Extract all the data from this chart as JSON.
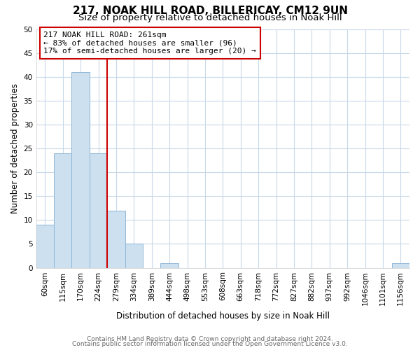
{
  "title": "217, NOAK HILL ROAD, BILLERICAY, CM12 9UN",
  "subtitle": "Size of property relative to detached houses in Noak Hill",
  "xlabel": "Distribution of detached houses by size in Noak Hill",
  "ylabel": "Number of detached properties",
  "bar_labels": [
    "60sqm",
    "115sqm",
    "170sqm",
    "224sqm",
    "279sqm",
    "334sqm",
    "389sqm",
    "444sqm",
    "498sqm",
    "553sqm",
    "608sqm",
    "663sqm",
    "718sqm",
    "772sqm",
    "827sqm",
    "882sqm",
    "937sqm",
    "992sqm",
    "1046sqm",
    "1101sqm",
    "1156sqm"
  ],
  "bar_values": [
    9,
    24,
    41,
    24,
    12,
    5,
    0,
    1,
    0,
    0,
    0,
    0,
    0,
    0,
    0,
    0,
    0,
    0,
    0,
    0,
    1
  ],
  "bar_color": "#cce0f0",
  "bar_edge_color": "#90b8d8",
  "ylim": [
    0,
    50
  ],
  "yticks": [
    0,
    5,
    10,
    15,
    20,
    25,
    30,
    35,
    40,
    45,
    50
  ],
  "vline_x": 3.5,
  "vline_color": "#cc0000",
  "annotation_line1": "217 NOAK HILL ROAD: 261sqm",
  "annotation_line2": "← 83% of detached houses are smaller (96)",
  "annotation_line3": "17% of semi-detached houses are larger (20) →",
  "footer_line1": "Contains HM Land Registry data © Crown copyright and database right 2024.",
  "footer_line2": "Contains public sector information licensed under the Open Government Licence v3.0.",
  "background_color": "#ffffff",
  "grid_color": "#c8d8e8",
  "title_fontsize": 11,
  "subtitle_fontsize": 9.5,
  "axis_label_fontsize": 8.5,
  "tick_fontsize": 7.5,
  "annotation_fontsize": 8,
  "footer_fontsize": 6.5
}
